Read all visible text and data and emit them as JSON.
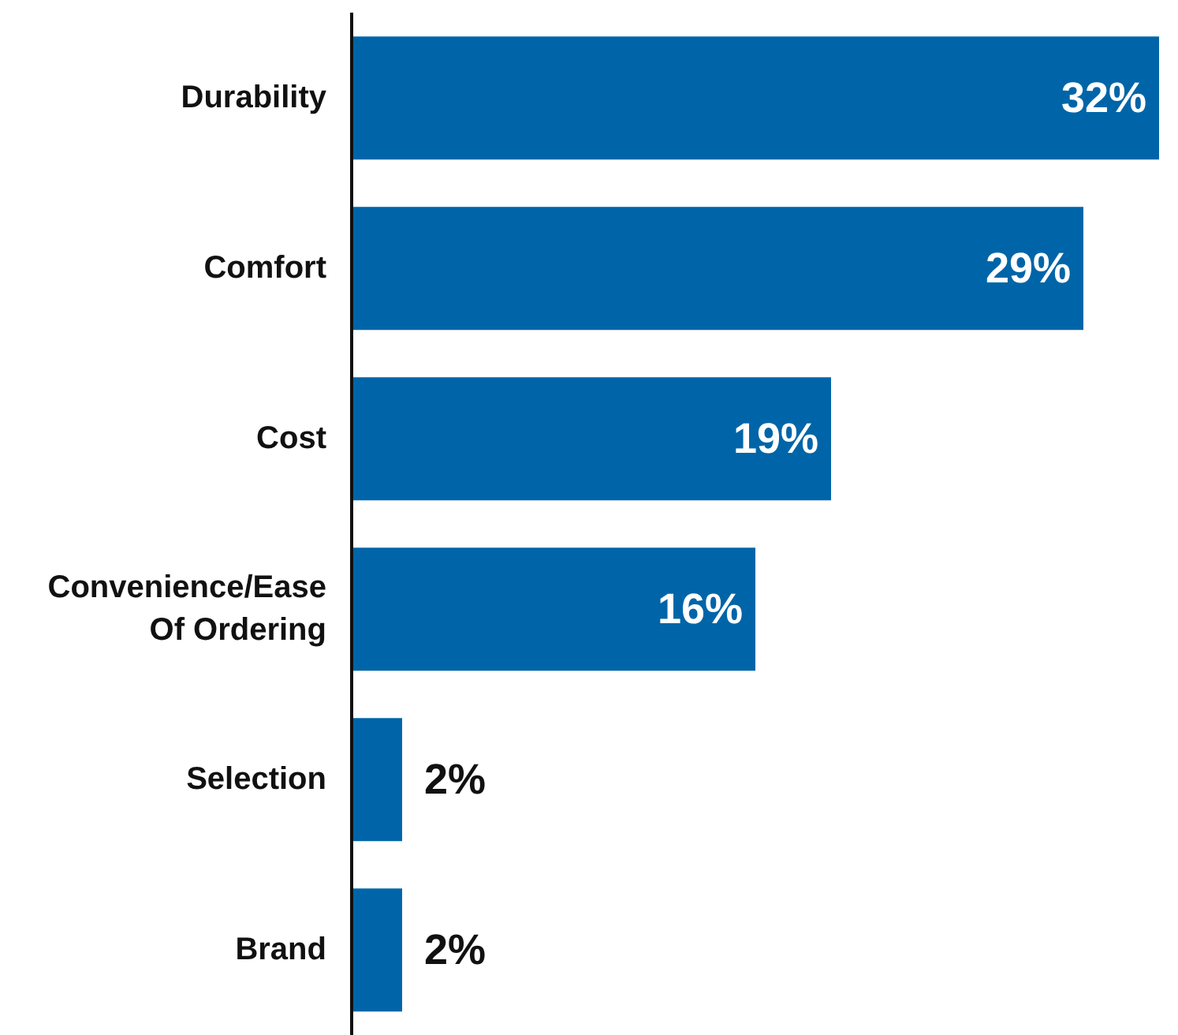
{
  "chart_data": {
    "type": "bar",
    "orientation": "horizontal",
    "categories": [
      "Durability",
      "Comfort",
      "Cost",
      "Convenience/Ease Of Ordering",
      "Selection",
      "Brand"
    ],
    "values": [
      32,
      29,
      19,
      16,
      2,
      2
    ],
    "value_labels": [
      "32%",
      "29%",
      "19%",
      "16%",
      "2%",
      "2%"
    ],
    "color": "#0065a8",
    "grid": false,
    "legend": false
  }
}
